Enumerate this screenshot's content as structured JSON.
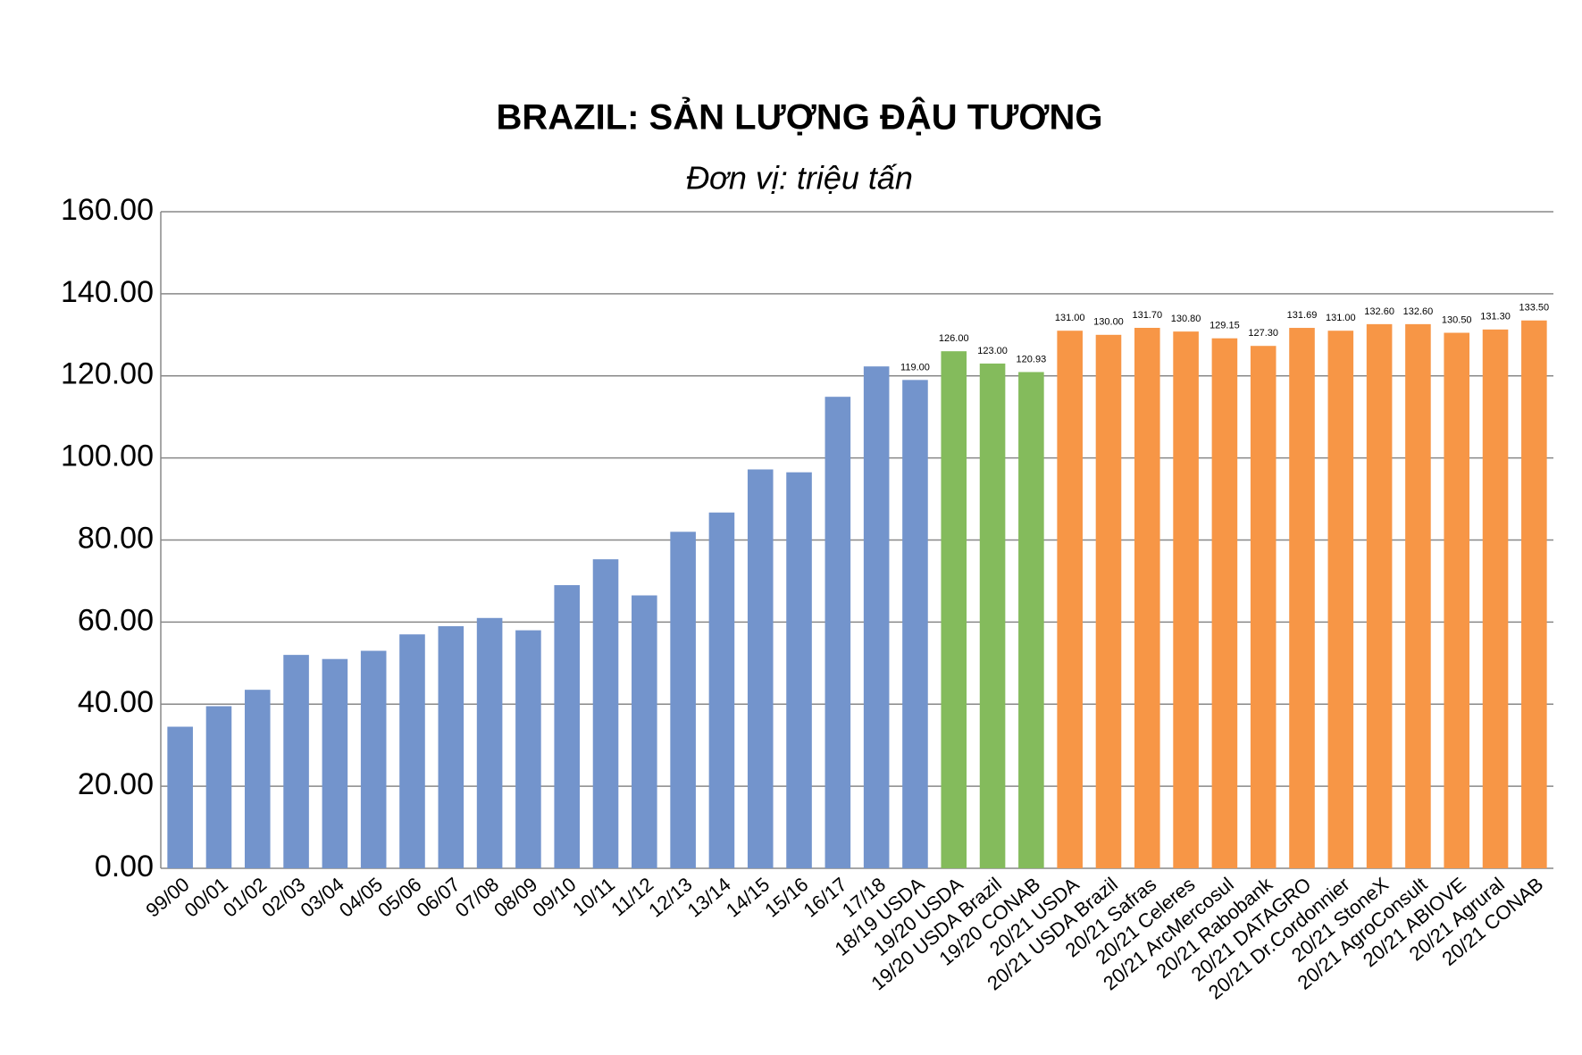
{
  "chart_data": {
    "type": "bar",
    "title": "BRAZIL: SẢN LƯỢNG ĐẬU TƯƠNG",
    "subtitle": "Đơn vị: triệu tấn",
    "categories": [
      "99/00",
      "00/01",
      "01/02",
      "02/03",
      "03/04",
      "04/05",
      "05/06",
      "06/07",
      "07/08",
      "08/09",
      "09/10",
      "10/11",
      "11/12",
      "12/13",
      "13/14",
      "14/15",
      "15/16",
      "16/17",
      "17/18",
      "18/19 USDA",
      "19/20 USDA",
      "19/20 USDA Brazil",
      "19/20 CONAB",
      "20/21 USDA",
      "20/21 USDA Brazil",
      "20/21 Safras",
      "20/21 Celeres",
      "20/21 ArcMercosul",
      "20/21 Rabobank",
      "20/21 DATAGRO",
      "20/21 Dr.Cordonnier",
      "20/21 StoneX",
      "20/21 AgroConsult",
      "20/21 ABIOVE",
      "20/21 Agrural",
      "20/21 CONAB"
    ],
    "values": [
      34.5,
      39.5,
      43.5,
      52,
      51,
      53,
      57,
      59,
      61,
      58,
      69,
      75.3,
      66.5,
      82,
      86.7,
      97.2,
      96.5,
      114.9,
      122.3,
      119,
      126,
      123,
      120.93,
      131,
      130,
      131.7,
      130.8,
      129.15,
      127.3,
      131.69,
      131,
      132.6,
      132.6,
      130.5,
      131.3,
      133.5
    ],
    "value_labels": [
      null,
      null,
      null,
      null,
      null,
      null,
      null,
      null,
      null,
      null,
      null,
      null,
      null,
      null,
      null,
      null,
      null,
      null,
      null,
      "119.00",
      "126.00",
      "123.00",
      "120.93",
      "131.00",
      "130.00",
      "131.70",
      "130.80",
      "129.15",
      "127.30",
      "131.69",
      "131.00",
      "132.60",
      "132.60",
      "130.50",
      "131.30",
      "133.50"
    ],
    "colors": [
      "#7394cc",
      "#7394cc",
      "#7394cc",
      "#7394cc",
      "#7394cc",
      "#7394cc",
      "#7394cc",
      "#7394cc",
      "#7394cc",
      "#7394cc",
      "#7394cc",
      "#7394cc",
      "#7394cc",
      "#7394cc",
      "#7394cc",
      "#7394cc",
      "#7394cc",
      "#7394cc",
      "#7394cc",
      "#7394cc",
      "#84bb5c",
      "#84bb5c",
      "#84bb5c",
      "#f79646",
      "#f79646",
      "#f79646",
      "#f79646",
      "#f79646",
      "#f79646",
      "#f79646",
      "#f79646",
      "#f79646",
      "#f79646",
      "#f79646",
      "#f79646",
      "#f79646"
    ],
    "ylim": [
      0,
      160
    ],
    "yticks": [
      {
        "value": 0,
        "label": "0.00"
      },
      {
        "value": 20,
        "label": "20.00"
      },
      {
        "value": 40,
        "label": "40.00"
      },
      {
        "value": 60,
        "label": "60.00"
      },
      {
        "value": 80,
        "label": "80.00"
      },
      {
        "value": 100,
        "label": "100.00"
      },
      {
        "value": 120,
        "label": "120.00"
      },
      {
        "value": 140,
        "label": "140.00"
      },
      {
        "value": 160,
        "label": "160.00"
      }
    ],
    "grid": true
  }
}
